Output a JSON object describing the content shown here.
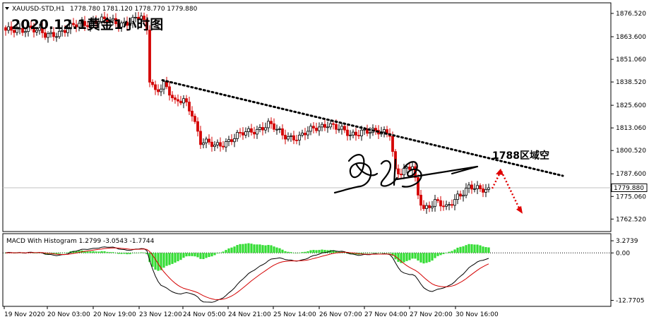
{
  "chart_data": {
    "type": "candlestick",
    "symbol_header": "XAUUSD-STD,H1",
    "ohlc_header": "1778.780 1781.120 1778.770 1779.880",
    "title": "2020.12.1黄金1小时图",
    "annotation": "1788区域空",
    "current_price_label": "1779.880",
    "current_price": 1779.88,
    "ylim": [
      1756,
      1882
    ],
    "price_ticks": [
      "1876.520",
      "1863.600",
      "1851.060",
      "1838.520",
      "1825.600",
      "1813.060",
      "1800.520",
      "1787.600",
      "1775.060",
      "1762.520"
    ],
    "price_tick_values": [
      1876.52,
      1863.6,
      1851.06,
      1838.52,
      1825.6,
      1813.06,
      1800.52,
      1787.6,
      1775.06,
      1762.52
    ],
    "x_labels": [
      "19 Nov 2020",
      "20 Nov 03:00",
      "20 Nov 19:00",
      "23 Nov 12:00",
      "24 Nov 05:00",
      "24 Nov 21:00",
      "25 Nov 14:00",
      "26 Nov 07:00",
      "27 Nov 04:00",
      "27 Nov 20:00",
      "30 Nov 16:00"
    ],
    "trendline_prices": [
      1839.5,
      1786.5
    ],
    "projection_prices": [
      1779.5,
      1790.5,
      1765.5
    ],
    "macd": {
      "header": "MACD With Histogram 1.2799 -3.0543 -1.7744",
      "values": [
        1.2799,
        -3.0543,
        -1.7744
      ],
      "ticks": [
        "3.2739",
        "0.00",
        "-12.7705"
      ],
      "tick_values": [
        3.2739,
        0.0,
        -12.7705
      ],
      "ylim": [
        -14.2,
        5.0
      ]
    },
    "colors": {
      "bull": "#000000",
      "bear": "#d40000",
      "histogram": "#33dd33",
      "macd_line": "#000000",
      "signal_line": "#d40000",
      "trendline": "#000000",
      "projection": "#e00000",
      "grid_price_line": "#c0c0c0"
    },
    "anchors": [
      {
        "i": 0,
        "p": 1866
      },
      {
        "i": 8,
        "p": 1869
      },
      {
        "i": 14,
        "p": 1864
      },
      {
        "i": 24,
        "p": 1869
      },
      {
        "i": 32,
        "p": 1873
      },
      {
        "i": 40,
        "p": 1871
      },
      {
        "i": 48,
        "p": 1874
      },
      {
        "i": 50,
        "p": 1867
      },
      {
        "i": 51,
        "p": 1840
      },
      {
        "i": 53,
        "p": 1834
      },
      {
        "i": 56,
        "p": 1838
      },
      {
        "i": 60,
        "p": 1826
      },
      {
        "i": 63,
        "p": 1829
      },
      {
        "i": 66,
        "p": 1822
      },
      {
        "i": 69,
        "p": 1805
      },
      {
        "i": 74,
        "p": 1803
      },
      {
        "i": 80,
        "p": 1807
      },
      {
        "i": 88,
        "p": 1812
      },
      {
        "i": 93,
        "p": 1815
      },
      {
        "i": 98,
        "p": 1809
      },
      {
        "i": 104,
        "p": 1808
      },
      {
        "i": 110,
        "p": 1813
      },
      {
        "i": 114,
        "p": 1816
      },
      {
        "i": 118,
        "p": 1812
      },
      {
        "i": 122,
        "p": 1809
      },
      {
        "i": 126,
        "p": 1812
      },
      {
        "i": 131,
        "p": 1810
      },
      {
        "i": 136,
        "p": 1811
      },
      {
        "i": 138,
        "p": 1790
      },
      {
        "i": 140,
        "p": 1788
      },
      {
        "i": 144,
        "p": 1791
      },
      {
        "i": 146,
        "p": 1776
      },
      {
        "i": 148,
        "p": 1769
      },
      {
        "i": 152,
        "p": 1772
      },
      {
        "i": 156,
        "p": 1768
      },
      {
        "i": 160,
        "p": 1776
      },
      {
        "i": 164,
        "p": 1780
      },
      {
        "i": 168,
        "p": 1778
      },
      {
        "i": 171,
        "p": 1780
      }
    ],
    "candle_count": 172
  }
}
